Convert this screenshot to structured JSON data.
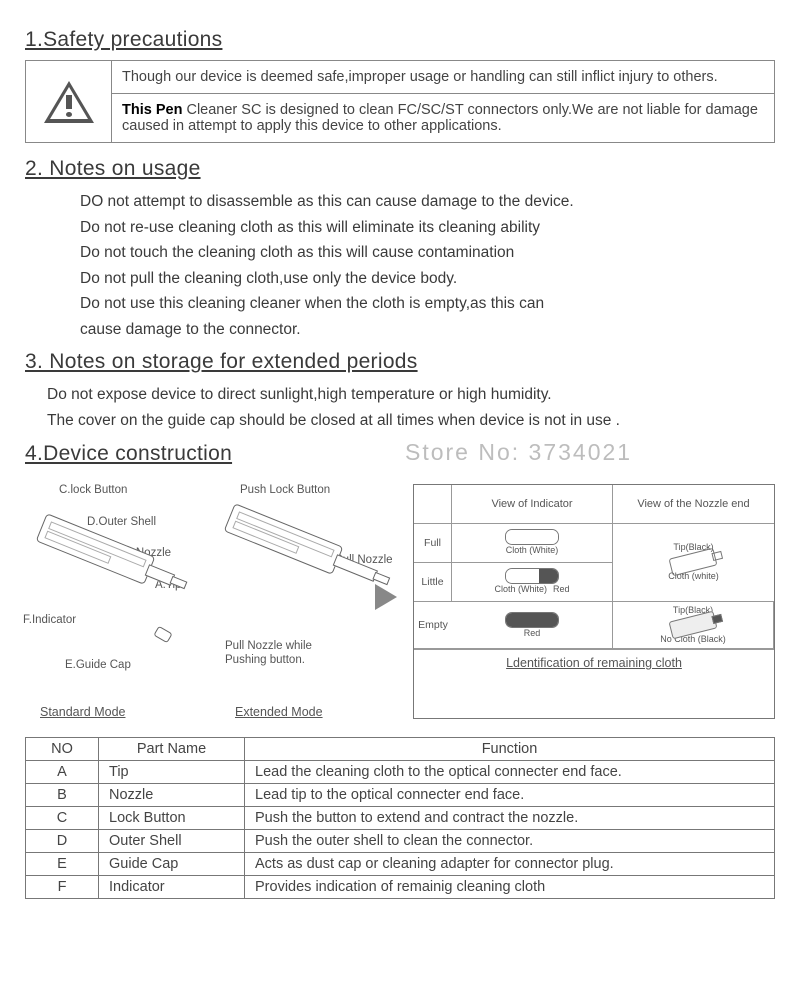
{
  "sections": {
    "safety_title": "1.Safety precautions",
    "usage_title": "2. Notes on usage",
    "storage_title": "3. Notes on storage for extended periods",
    "construction_title": "4.Device construction"
  },
  "safety": {
    "line1": "Though our device is deemed safe,improper usage or handling can still inflict injury to others.",
    "line2_bold": "This Pen",
    "line2_rest": " Cleaner SC is designed to clean FC/SC/ST connectors only.We are not liable for damage caused in attempt to apply this device to other applications."
  },
  "usage_notes": [
    "DO not attempt to disassemble as this can cause damage to the device.",
    "Do not re-use cleaning cloth as this will eliminate its cleaning ability",
    "Do not touch the cleaning cloth as this will cause contamination",
    "Do not pull the cleaning cloth,use only the device body.",
    "Do not use this cleaning cleaner when the cloth is empty,as this can",
    "cause damage to the connector."
  ],
  "storage_notes": [
    "Do not expose device to direct sunlight,high temperature or high humidity.",
    "The cover on the guide cap should be closed at all times when device is not in use ."
  ],
  "watermark": "Store No: 3734021",
  "diagram_labels": {
    "c_lock": "C.lock Button",
    "d_outer": "D.Outer Shell",
    "b_nozzle": "B.Nozzle",
    "a_tip": "A.Tip",
    "f_indicator": "F.Indicator",
    "e_guide": "E.Guide Cap",
    "push_lock": "Push Lock Button",
    "pull_nozzle": "Pull Nozzle",
    "pull_while": "Pull Nozzle while Pushing button.",
    "mode_std": "Standard Mode",
    "mode_ext": "Extended Mode"
  },
  "identification": {
    "header_indicator": "View of Indicator",
    "header_nozzle": "View of the Nozzle end",
    "row_full": "Full",
    "row_little": "Little",
    "row_empty": "Empty",
    "cloth_white": "Cloth (White)",
    "red": "Red",
    "tip_black": "Tip(Black)",
    "cloth_white2": "Cloth (white)",
    "no_cloth": "No Cloth (Black)",
    "caption": "Ldentification of remaining cloth"
  },
  "parts_table": {
    "headers": {
      "no": "NO",
      "part": "Part Name",
      "func": "Function"
    },
    "rows": [
      {
        "no": "A",
        "part": "Tip",
        "func": "Lead the cleaning cloth to the optical connecter end face."
      },
      {
        "no": "B",
        "part": "Nozzle",
        "func": "Lead tip to the optical connecter end face."
      },
      {
        "no": "C",
        "part": "Lock Button",
        "func": "Push the button to extend and contract the nozzle."
      },
      {
        "no": "D",
        "part": "Outer Shell",
        "func": "Push the outer shell to clean the connector."
      },
      {
        "no": "E",
        "part": "Guide Cap",
        "func": "Acts as dust cap or cleaning adapter for connector plug."
      },
      {
        "no": "F",
        "part": "Indicator",
        "func": " Provides indication of remainig cleaning cloth"
      }
    ]
  },
  "colors": {
    "text": "#3a3a3a",
    "border": "#777777",
    "watermark": "#bdbdbd",
    "line": "#666666"
  }
}
